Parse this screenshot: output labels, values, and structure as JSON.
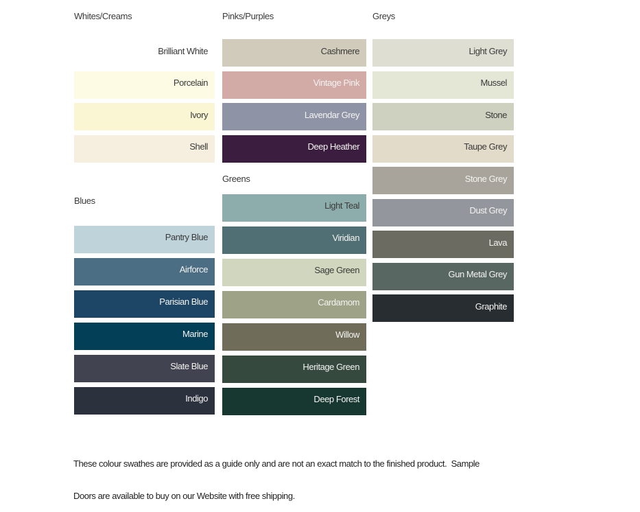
{
  "page": {
    "background": "#ffffff",
    "label_color_dark": "#3a3a3a",
    "label_color_light": "#f4f3f1"
  },
  "columns": [
    {
      "id": "col-a",
      "groups": [
        {
          "title": "Whites/Creams",
          "swatches": [
            {
              "name": "Brilliant White",
              "color": "#ffffff",
              "label_style": "dark"
            },
            {
              "name": "Porcelain",
              "color": "#fdfbe3",
              "label_style": "dark"
            },
            {
              "name": "Ivory",
              "color": "#faf5d3",
              "label_style": "dark"
            },
            {
              "name": "Shell",
              "color": "#f6eedf",
              "label_style": "dark"
            }
          ]
        },
        {
          "title": "Blues",
          "swatches": [
            {
              "name": "Pantry Blue",
              "color": "#bed3da",
              "label_style": "dark"
            },
            {
              "name": "Airforce",
              "color": "#4c6e85",
              "label_style": "light"
            },
            {
              "name": "Parisian Blue",
              "color": "#1d4566",
              "label_style": "light"
            },
            {
              "name": "Marine",
              "color": "#033f56",
              "label_style": "light"
            },
            {
              "name": "Slate Blue",
              "color": "#414450",
              "label_style": "light"
            },
            {
              "name": "Indigo",
              "color": "#2b313d",
              "label_style": "light"
            }
          ]
        }
      ]
    },
    {
      "id": "col-b",
      "groups": [
        {
          "title": "Pinks/Purples",
          "swatches": [
            {
              "name": "Cashmere",
              "color": "#d0cbba",
              "label_style": "dark"
            },
            {
              "name": "Vintage Pink",
              "color": "#d2aba7",
              "label_style": "light"
            },
            {
              "name": "Lavendar Grey",
              "color": "#8e94a6",
              "label_style": "light"
            },
            {
              "name": "Deep Heather",
              "color": "#3b1d40",
              "label_style": "light"
            }
          ]
        },
        {
          "title": "Greens",
          "swatches": [
            {
              "name": "Light Teal",
              "color": "#8cadab",
              "label_style": "dark"
            },
            {
              "name": "Viridian",
              "color": "#506f75",
              "label_style": "light"
            },
            {
              "name": "Sage Green",
              "color": "#d1d6be",
              "label_style": "dark"
            },
            {
              "name": "Cardamom",
              "color": "#9ea388",
              "label_style": "light"
            },
            {
              "name": "Willow",
              "color": "#6f6d59",
              "label_style": "light"
            },
            {
              "name": "Heritage Green",
              "color": "#35493e",
              "label_style": "light"
            },
            {
              "name": "Deep Forest",
              "color": "#173831",
              "label_style": "light"
            }
          ]
        }
      ]
    },
    {
      "id": "col-c",
      "groups": [
        {
          "title": "Greys",
          "swatches": [
            {
              "name": "Light Grey",
              "color": "#dedfd2",
              "label_style": "dark"
            },
            {
              "name": "Mussel",
              "color": "#e4e6d6",
              "label_style": "dark"
            },
            {
              "name": "Stone",
              "color": "#ced1c0",
              "label_style": "dark"
            },
            {
              "name": "Taupe Grey",
              "color": "#e2dbc9",
              "label_style": "dark"
            },
            {
              "name": "Stone Grey",
              "color": "#a9a49b",
              "label_style": "light"
            },
            {
              "name": "Dust Grey",
              "color": "#94969d",
              "label_style": "light"
            },
            {
              "name": "Lava",
              "color": "#6b6b62",
              "label_style": "light"
            },
            {
              "name": "Gun Metal Grey",
              "color": "#596763",
              "label_style": "light"
            },
            {
              "name": "Graphite",
              "color": "#282d32",
              "label_style": "light"
            }
          ]
        }
      ]
    }
  ],
  "footer": {
    "line1": "These colour swathes are provided as a guide only and are not an exact match to the finished product.  Sample",
    "line2": "Doors are available to buy on our Website with free shipping."
  }
}
